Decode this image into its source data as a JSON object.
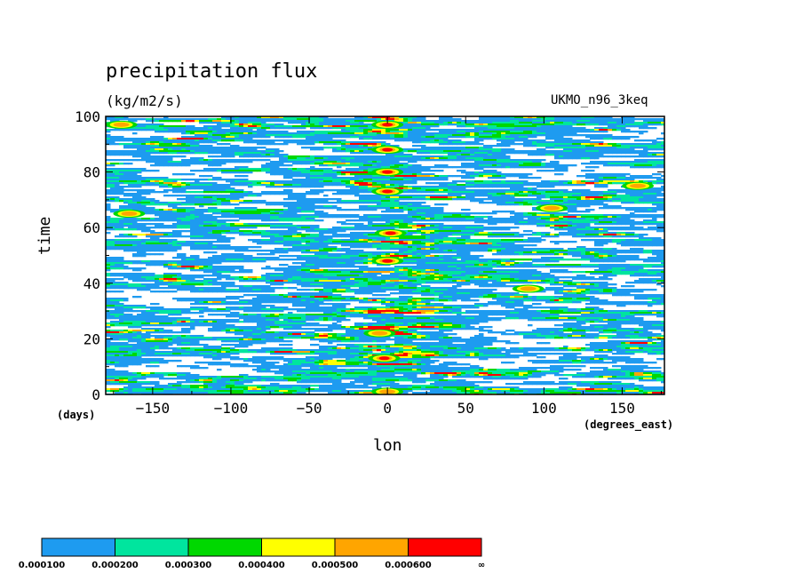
{
  "chart_data": {
    "type": "heatmap",
    "title": "precipitation flux",
    "units": "(kg/m2/s)",
    "model_label": "UKMO_n96_3keq",
    "xlabel": "lon",
    "xunit": "(degrees_east)",
    "ylabel": "time",
    "yunit": "(days)",
    "xlim": [
      -180,
      177
    ],
    "ylim": [
      0,
      100
    ],
    "xticks": [
      -150,
      -100,
      -50,
      0,
      50,
      100,
      150
    ],
    "xtick_labels": [
      "−150",
      "−100",
      "−50",
      "0",
      "50",
      "100",
      "150"
    ],
    "yticks": [
      0,
      20,
      40,
      60,
      80,
      100
    ],
    "ytick_labels": [
      "0",
      "20",
      "40",
      "60",
      "80",
      "100"
    ],
    "colorbar": {
      "levels": [
        "0.000100",
        "0.000200",
        "0.000300",
        "0.000400",
        "0.000500",
        "0.000600",
        "∞"
      ],
      "colors": [
        "#1e9bf0",
        "#00e59e",
        "#00d800",
        "#ffff00",
        "#ffa500",
        "#ff0000"
      ]
    },
    "convective_bursts": [
      {
        "lon": 0,
        "time": 97,
        "intensity": 5
      },
      {
        "lon": 0,
        "time": 88,
        "intensity": 5
      },
      {
        "lon": 0,
        "time": 80,
        "intensity": 5
      },
      {
        "lon": 0,
        "time": 73,
        "intensity": 5
      },
      {
        "lon": 2,
        "time": 58,
        "intensity": 5
      },
      {
        "lon": 0,
        "time": 48,
        "intensity": 5
      },
      {
        "lon": -5,
        "time": 22,
        "intensity": 4
      },
      {
        "lon": -2,
        "time": 13,
        "intensity": 5
      },
      {
        "lon": 0,
        "time": 1,
        "intensity": 4
      },
      {
        "lon": 105,
        "time": 67,
        "intensity": 4
      },
      {
        "lon": 160,
        "time": 75,
        "intensity": 4
      },
      {
        "lon": -170,
        "time": 97,
        "intensity": 4
      },
      {
        "lon": -165,
        "time": 65,
        "intensity": 4
      },
      {
        "lon": 90,
        "time": 38,
        "intensity": 4
      }
    ]
  }
}
